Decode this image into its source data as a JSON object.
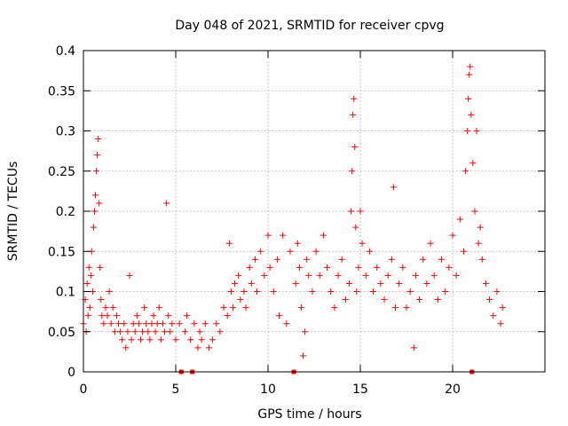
{
  "chart_data": {
    "type": "scatter",
    "title": "Day 048 of 2021, SRMTID for receiver cpvg",
    "xlabel": "GPS time / hours",
    "ylabel": "SRMTID / TECUs",
    "xlim": [
      0,
      25
    ],
    "ylim": [
      0,
      0.4
    ],
    "xticks": [
      0,
      5,
      10,
      15,
      20
    ],
    "xtick_labels": [
      "0",
      "5",
      "10",
      "15",
      "20"
    ],
    "yticks": [
      0,
      0.05,
      0.1,
      0.15,
      0.2,
      0.25,
      0.3,
      0.35,
      0.4
    ],
    "ytick_labels": [
      "0",
      "0.05",
      "0.1",
      "0.15",
      "0.2",
      "0.25",
      "0.3",
      "0.35",
      "0.4"
    ],
    "grid": true,
    "marker": "+",
    "color": "#ff0000",
    "series": [
      {
        "name": "SRMTID",
        "points": [
          [
            0.0,
            0.06
          ],
          [
            0.1,
            0.09
          ],
          [
            0.15,
            0.05
          ],
          [
            0.2,
            0.11
          ],
          [
            0.25,
            0.07
          ],
          [
            0.3,
            0.13
          ],
          [
            0.35,
            0.08
          ],
          [
            0.4,
            0.12
          ],
          [
            0.45,
            0.15
          ],
          [
            0.5,
            0.1
          ],
          [
            0.55,
            0.18
          ],
          [
            0.6,
            0.2
          ],
          [
            0.65,
            0.22
          ],
          [
            0.7,
            0.25
          ],
          [
            0.75,
            0.27
          ],
          [
            0.8,
            0.29
          ],
          [
            0.85,
            0.21
          ],
          [
            0.9,
            0.13
          ],
          [
            0.95,
            0.09
          ],
          [
            1.0,
            0.07
          ],
          [
            1.1,
            0.06
          ],
          [
            1.2,
            0.08
          ],
          [
            1.3,
            0.07
          ],
          [
            1.4,
            0.1
          ],
          [
            1.5,
            0.06
          ],
          [
            1.6,
            0.08
          ],
          [
            1.7,
            0.05
          ],
          [
            1.8,
            0.07
          ],
          [
            1.9,
            0.06
          ],
          [
            2.0,
            0.05
          ],
          [
            2.1,
            0.04
          ],
          [
            2.2,
            0.06
          ],
          [
            2.3,
            0.03
          ],
          [
            2.4,
            0.05
          ],
          [
            2.5,
            0.12
          ],
          [
            2.6,
            0.04
          ],
          [
            2.7,
            0.06
          ],
          [
            2.8,
            0.05
          ],
          [
            2.9,
            0.07
          ],
          [
            3.0,
            0.06
          ],
          [
            3.1,
            0.04
          ],
          [
            3.2,
            0.05
          ],
          [
            3.3,
            0.08
          ],
          [
            3.4,
            0.06
          ],
          [
            3.5,
            0.05
          ],
          [
            3.6,
            0.04
          ],
          [
            3.7,
            0.06
          ],
          [
            3.8,
            0.07
          ],
          [
            3.9,
            0.05
          ],
          [
            4.0,
            0.06
          ],
          [
            4.1,
            0.08
          ],
          [
            4.2,
            0.04
          ],
          [
            4.3,
            0.06
          ],
          [
            4.4,
            0.05
          ],
          [
            4.5,
            0.21
          ],
          [
            4.6,
            0.07
          ],
          [
            4.7,
            0.05
          ],
          [
            4.8,
            0.06
          ],
          [
            5.0,
            0.04
          ],
          [
            5.2,
            0.06
          ],
          [
            5.3,
            0.0
          ],
          [
            5.5,
            0.05
          ],
          [
            5.6,
            0.07
          ],
          [
            5.8,
            0.04
          ],
          [
            5.9,
            0.0
          ],
          [
            6.0,
            0.06
          ],
          [
            6.2,
            0.03
          ],
          [
            6.3,
            0.05
          ],
          [
            6.4,
            0.04
          ],
          [
            6.6,
            0.06
          ],
          [
            6.8,
            0.03
          ],
          [
            7.0,
            0.04
          ],
          [
            7.2,
            0.06
          ],
          [
            7.4,
            0.05
          ],
          [
            7.6,
            0.08
          ],
          [
            7.8,
            0.07
          ],
          [
            7.9,
            0.16
          ],
          [
            8.0,
            0.1
          ],
          [
            8.1,
            0.08
          ],
          [
            8.2,
            0.11
          ],
          [
            8.4,
            0.12
          ],
          [
            8.5,
            0.09
          ],
          [
            8.7,
            0.1
          ],
          [
            8.8,
            0.08
          ],
          [
            9.0,
            0.13
          ],
          [
            9.1,
            0.11
          ],
          [
            9.3,
            0.14
          ],
          [
            9.4,
            0.1
          ],
          [
            9.6,
            0.15
          ],
          [
            9.8,
            0.12
          ],
          [
            10.0,
            0.17
          ],
          [
            10.1,
            0.13
          ],
          [
            10.3,
            0.1
          ],
          [
            10.5,
            0.14
          ],
          [
            10.6,
            0.07
          ],
          [
            10.8,
            0.17
          ],
          [
            11.0,
            0.06
          ],
          [
            11.2,
            0.15
          ],
          [
            11.4,
            0.0
          ],
          [
            11.5,
            0.11
          ],
          [
            11.6,
            0.16
          ],
          [
            11.7,
            0.13
          ],
          [
            11.8,
            0.08
          ],
          [
            11.9,
            0.02
          ],
          [
            12.0,
            0.05
          ],
          [
            12.1,
            0.14
          ],
          [
            12.2,
            0.12
          ],
          [
            12.4,
            0.1
          ],
          [
            12.6,
            0.15
          ],
          [
            12.8,
            0.12
          ],
          [
            13.0,
            0.17
          ],
          [
            13.2,
            0.13
          ],
          [
            13.4,
            0.1
          ],
          [
            13.6,
            0.08
          ],
          [
            13.8,
            0.12
          ],
          [
            14.0,
            0.14
          ],
          [
            14.2,
            0.09
          ],
          [
            14.4,
            0.11
          ],
          [
            14.5,
            0.2
          ],
          [
            14.55,
            0.25
          ],
          [
            14.6,
            0.32
          ],
          [
            14.65,
            0.34
          ],
          [
            14.7,
            0.28
          ],
          [
            14.75,
            0.18
          ],
          [
            14.8,
            0.1
          ],
          [
            14.9,
            0.13
          ],
          [
            15.0,
            0.2
          ],
          [
            15.1,
            0.16
          ],
          [
            15.3,
            0.12
          ],
          [
            15.5,
            0.15
          ],
          [
            15.7,
            0.1
          ],
          [
            15.9,
            0.13
          ],
          [
            16.1,
            0.11
          ],
          [
            16.3,
            0.09
          ],
          [
            16.5,
            0.12
          ],
          [
            16.7,
            0.14
          ],
          [
            16.8,
            0.23
          ],
          [
            16.9,
            0.08
          ],
          [
            17.1,
            0.11
          ],
          [
            17.3,
            0.13
          ],
          [
            17.5,
            0.08
          ],
          [
            17.7,
            0.1
          ],
          [
            17.9,
            0.03
          ],
          [
            18.0,
            0.12
          ],
          [
            18.2,
            0.09
          ],
          [
            18.4,
            0.14
          ],
          [
            18.6,
            0.11
          ],
          [
            18.8,
            0.16
          ],
          [
            19.0,
            0.12
          ],
          [
            19.2,
            0.09
          ],
          [
            19.4,
            0.14
          ],
          [
            19.6,
            0.1
          ],
          [
            19.8,
            0.13
          ],
          [
            20.0,
            0.17
          ],
          [
            20.2,
            0.12
          ],
          [
            20.4,
            0.19
          ],
          [
            20.6,
            0.15
          ],
          [
            20.7,
            0.25
          ],
          [
            20.8,
            0.3
          ],
          [
            20.85,
            0.34
          ],
          [
            20.9,
            0.37
          ],
          [
            20.95,
            0.38
          ],
          [
            21.0,
            0.32
          ],
          [
            21.05,
            0.0
          ],
          [
            21.1,
            0.26
          ],
          [
            21.2,
            0.2
          ],
          [
            21.3,
            0.3
          ],
          [
            21.4,
            0.16
          ],
          [
            21.5,
            0.18
          ],
          [
            21.6,
            0.14
          ],
          [
            21.8,
            0.11
          ],
          [
            22.0,
            0.09
          ],
          [
            22.2,
            0.07
          ],
          [
            22.4,
            0.1
          ],
          [
            22.6,
            0.06
          ],
          [
            22.7,
            0.08
          ]
        ]
      }
    ]
  }
}
